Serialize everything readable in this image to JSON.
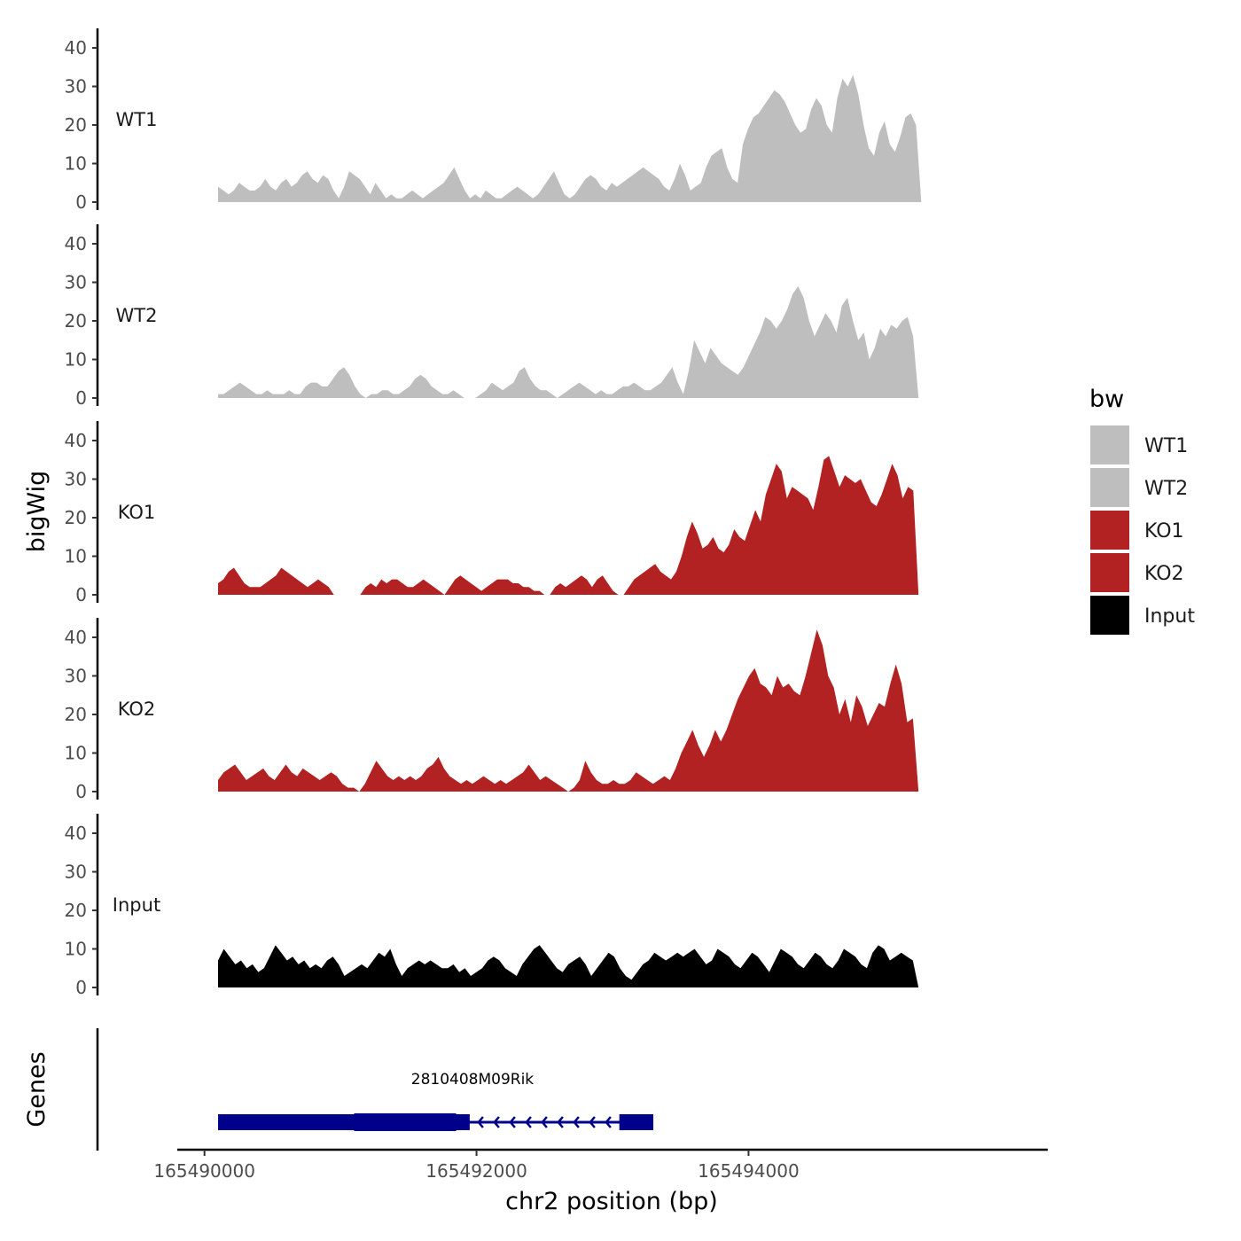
{
  "chart_data": {
    "type": "area",
    "ylabel": "bigWig",
    "xlabel": "chr2 position (bp)",
    "ylim": [
      0,
      44
    ],
    "yticks": [
      0,
      10,
      20,
      30,
      40
    ],
    "xlim": [
      165489800,
      165496200
    ],
    "xticks": [
      165490000,
      165492000,
      165494000
    ],
    "legend": {
      "title": "bw",
      "position": "right",
      "entries": [
        {
          "label": "WT1",
          "color": "#BEBEBE"
        },
        {
          "label": "WT2",
          "color": "#BEBEBE"
        },
        {
          "label": "KO1",
          "color": "#B22222"
        },
        {
          "label": "KO2",
          "color": "#B22222"
        },
        {
          "label": "Input",
          "color": "#000000"
        }
      ]
    },
    "series": [
      {
        "name": "WT1",
        "color": "#BEBEBE",
        "x_start": 165490100,
        "x_end": 165495270,
        "values": [
          4,
          3,
          2,
          3,
          5,
          4,
          3,
          3,
          4,
          6,
          4,
          3,
          5,
          6,
          4,
          5,
          7,
          8,
          6,
          5,
          7,
          6,
          3,
          1,
          4,
          8,
          7,
          6,
          4,
          2,
          5,
          3,
          1,
          2,
          1,
          1,
          2,
          3,
          2,
          1,
          2,
          3,
          4,
          5,
          7,
          9,
          6,
          3,
          1,
          2,
          1,
          3,
          2,
          1,
          1,
          2,
          3,
          4,
          3,
          2,
          1,
          2,
          4,
          6,
          8,
          5,
          2,
          1,
          2,
          4,
          6,
          7,
          6,
          4,
          3,
          5,
          4,
          5,
          6,
          7,
          8,
          9,
          8,
          7,
          6,
          4,
          3,
          6,
          10,
          7,
          3,
          4,
          5,
          9,
          12,
          13,
          14,
          9,
          6,
          5,
          15,
          19,
          22,
          23,
          25,
          27,
          29,
          28,
          26,
          23,
          20,
          18,
          19,
          24,
          27,
          25,
          20,
          18,
          27,
          32,
          30,
          33,
          28,
          20,
          14,
          12,
          18,
          21,
          15,
          13,
          17,
          22,
          23,
          20,
          0
        ]
      },
      {
        "name": "WT2",
        "color": "#BEBEBE",
        "x_start": 165490100,
        "x_end": 165495250,
        "values": [
          1,
          1,
          2,
          3,
          4,
          3,
          2,
          1,
          1,
          2,
          1,
          1,
          1,
          2,
          1,
          1,
          3,
          4,
          4,
          3,
          3,
          5,
          7,
          8,
          6,
          3,
          1,
          0,
          1,
          1,
          2,
          2,
          1,
          1,
          2,
          3,
          5,
          6,
          5,
          3,
          2,
          1,
          1,
          2,
          1,
          0,
          0,
          0,
          1,
          2,
          4,
          3,
          2,
          3,
          4,
          7,
          8,
          5,
          3,
          2,
          2,
          1,
          0,
          1,
          2,
          3,
          4,
          3,
          2,
          1,
          2,
          1,
          1,
          2,
          3,
          3,
          4,
          3,
          2,
          2,
          3,
          4,
          6,
          8,
          4,
          1,
          7,
          15,
          12,
          9,
          13,
          11,
          9,
          8,
          7,
          6,
          8,
          11,
          14,
          17,
          21,
          20,
          18,
          20,
          23,
          27,
          29,
          26,
          20,
          16,
          19,
          22,
          20,
          17,
          24,
          26,
          20,
          15,
          17,
          10,
          13,
          18,
          16,
          19,
          18,
          20,
          21,
          16,
          0
        ]
      },
      {
        "name": "KO1",
        "color": "#B22222",
        "x_start": 165490100,
        "x_end": 165495250,
        "values": [
          3,
          4,
          6,
          7,
          5,
          3,
          2,
          2,
          2,
          3,
          4,
          5,
          7,
          6,
          5,
          4,
          3,
          2,
          3,
          4,
          3,
          2,
          0,
          0,
          0,
          0,
          0,
          0,
          2,
          3,
          2,
          4,
          3,
          4,
          4,
          3,
          2,
          2,
          3,
          4,
          3,
          2,
          1,
          0,
          2,
          4,
          5,
          4,
          3,
          2,
          1,
          2,
          3,
          4,
          4,
          4,
          3,
          3,
          2,
          2,
          1,
          1,
          0,
          0,
          2,
          3,
          2,
          3,
          4,
          5,
          4,
          2,
          4,
          5,
          3,
          1,
          0,
          0,
          2,
          4,
          5,
          6,
          7,
          8,
          6,
          5,
          4,
          6,
          10,
          15,
          19,
          16,
          12,
          13,
          15,
          12,
          11,
          13,
          17,
          15,
          14,
          18,
          22,
          19,
          26,
          30,
          34,
          32,
          25,
          28,
          27,
          26,
          25,
          22,
          28,
          35,
          36,
          32,
          28,
          31,
          30,
          29,
          30,
          27,
          24,
          23,
          26,
          30,
          34,
          31,
          25,
          28,
          27,
          0
        ]
      },
      {
        "name": "KO2",
        "color": "#B22222",
        "x_start": 165490100,
        "x_end": 165495250,
        "values": [
          3,
          5,
          6,
          7,
          5,
          3,
          4,
          5,
          6,
          4,
          3,
          5,
          7,
          5,
          4,
          6,
          5,
          4,
          3,
          4,
          5,
          4,
          2,
          1,
          1,
          0,
          2,
          5,
          8,
          6,
          4,
          3,
          4,
          3,
          4,
          3,
          4,
          6,
          7,
          9,
          6,
          4,
          3,
          2,
          3,
          2,
          3,
          4,
          3,
          2,
          3,
          2,
          3,
          4,
          5,
          7,
          5,
          3,
          4,
          3,
          2,
          1,
          0,
          1,
          3,
          8,
          5,
          3,
          2,
          2,
          3,
          2,
          2,
          3,
          5,
          4,
          3,
          2,
          3,
          4,
          3,
          6,
          10,
          13,
          16,
          12,
          9,
          12,
          16,
          13,
          16,
          20,
          24,
          27,
          30,
          32,
          28,
          27,
          25,
          30,
          27,
          28,
          26,
          25,
          30,
          36,
          42,
          38,
          30,
          27,
          20,
          24,
          18,
          25,
          22,
          17,
          20,
          23,
          22,
          28,
          33,
          28,
          18,
          19,
          0
        ]
      },
      {
        "name": "Input",
        "color": "#000000",
        "x_start": 165490100,
        "x_end": 165495250,
        "values": [
          7,
          10,
          8,
          6,
          7,
          5,
          6,
          4,
          5,
          8,
          11,
          9,
          7,
          8,
          6,
          7,
          5,
          6,
          5,
          7,
          8,
          6,
          3,
          4,
          5,
          6,
          5,
          7,
          9,
          8,
          10,
          6,
          3,
          5,
          6,
          7,
          6,
          7,
          6,
          5,
          5,
          6,
          4,
          5,
          3,
          4,
          5,
          7,
          8,
          7,
          5,
          4,
          3,
          6,
          8,
          10,
          11,
          9,
          7,
          5,
          4,
          6,
          7,
          8,
          6,
          3,
          5,
          7,
          9,
          8,
          5,
          3,
          2,
          4,
          6,
          7,
          9,
          8,
          7,
          8,
          9,
          8,
          9,
          10,
          8,
          6,
          7,
          10,
          9,
          8,
          6,
          5,
          7,
          9,
          8,
          6,
          4,
          7,
          10,
          9,
          8,
          6,
          5,
          7,
          9,
          8,
          6,
          5,
          7,
          10,
          9,
          8,
          6,
          5,
          9,
          11,
          10,
          7,
          8,
          9,
          8,
          7,
          0
        ]
      }
    ],
    "genes_track": {
      "label": "Genes",
      "genes": [
        {
          "name": "2810408M09Rik",
          "strand": "-",
          "color": "#00008B",
          "start": 165490100,
          "end": 165493300,
          "exons": [
            [
              165490100,
              165491950
            ],
            [
              165493050,
              165493300
            ]
          ],
          "thick_exons": [
            [
              165491100,
              165491850
            ]
          ]
        }
      ]
    }
  }
}
